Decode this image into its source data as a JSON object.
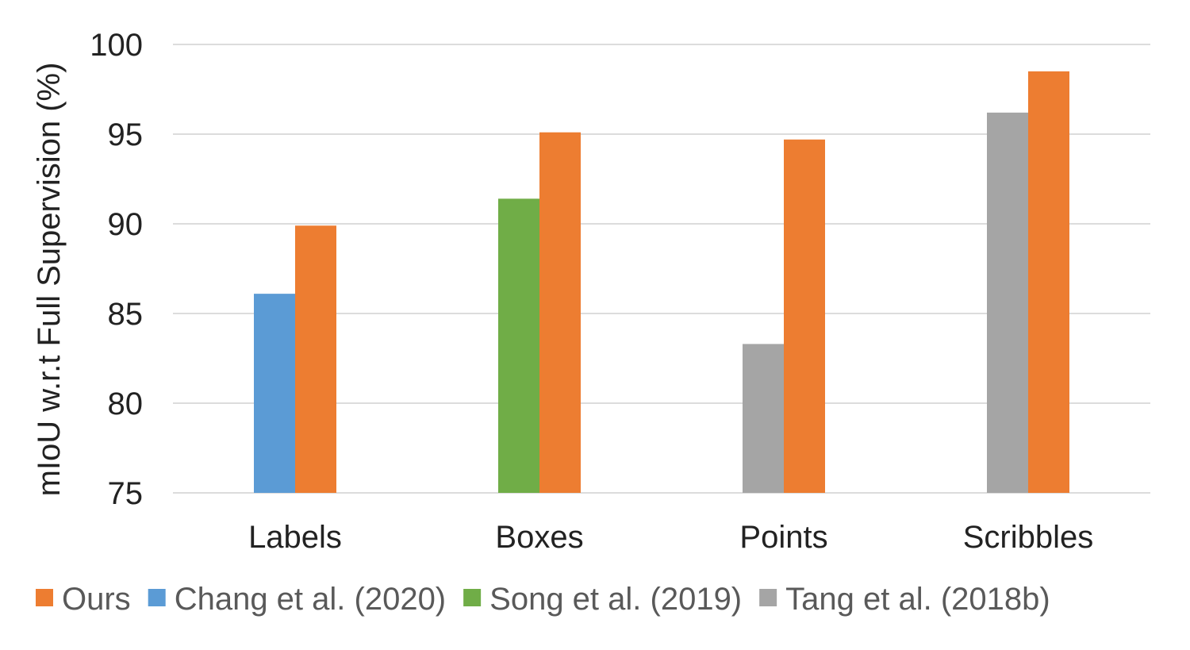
{
  "chart_data": {
    "type": "bar",
    "title": "",
    "xlabel": "",
    "ylabel": "mIoU w.r.t Full Supervision (%)",
    "ylim": [
      75,
      100
    ],
    "yticks": [
      75,
      80,
      85,
      90,
      95,
      100
    ],
    "grid": true,
    "legend_position": "bottom",
    "categories": [
      "Labels",
      "Boxes",
      "Points",
      "Scribbles"
    ],
    "series": [
      {
        "name": "Ours",
        "color": "#ED7D31",
        "values": [
          89.9,
          95.1,
          94.7,
          98.5
        ]
      },
      {
        "name": "Chang et al. (2020)",
        "color": "#5B9BD5",
        "values": [
          86.1,
          null,
          null,
          null
        ]
      },
      {
        "name": "Song et al. (2019)",
        "color": "#70AD47",
        "values": [
          null,
          91.4,
          null,
          null
        ]
      },
      {
        "name": "Tang et al. (2018b)",
        "color": "#A5A5A5",
        "values": [
          null,
          null,
          83.3,
          96.2
        ]
      }
    ]
  }
}
